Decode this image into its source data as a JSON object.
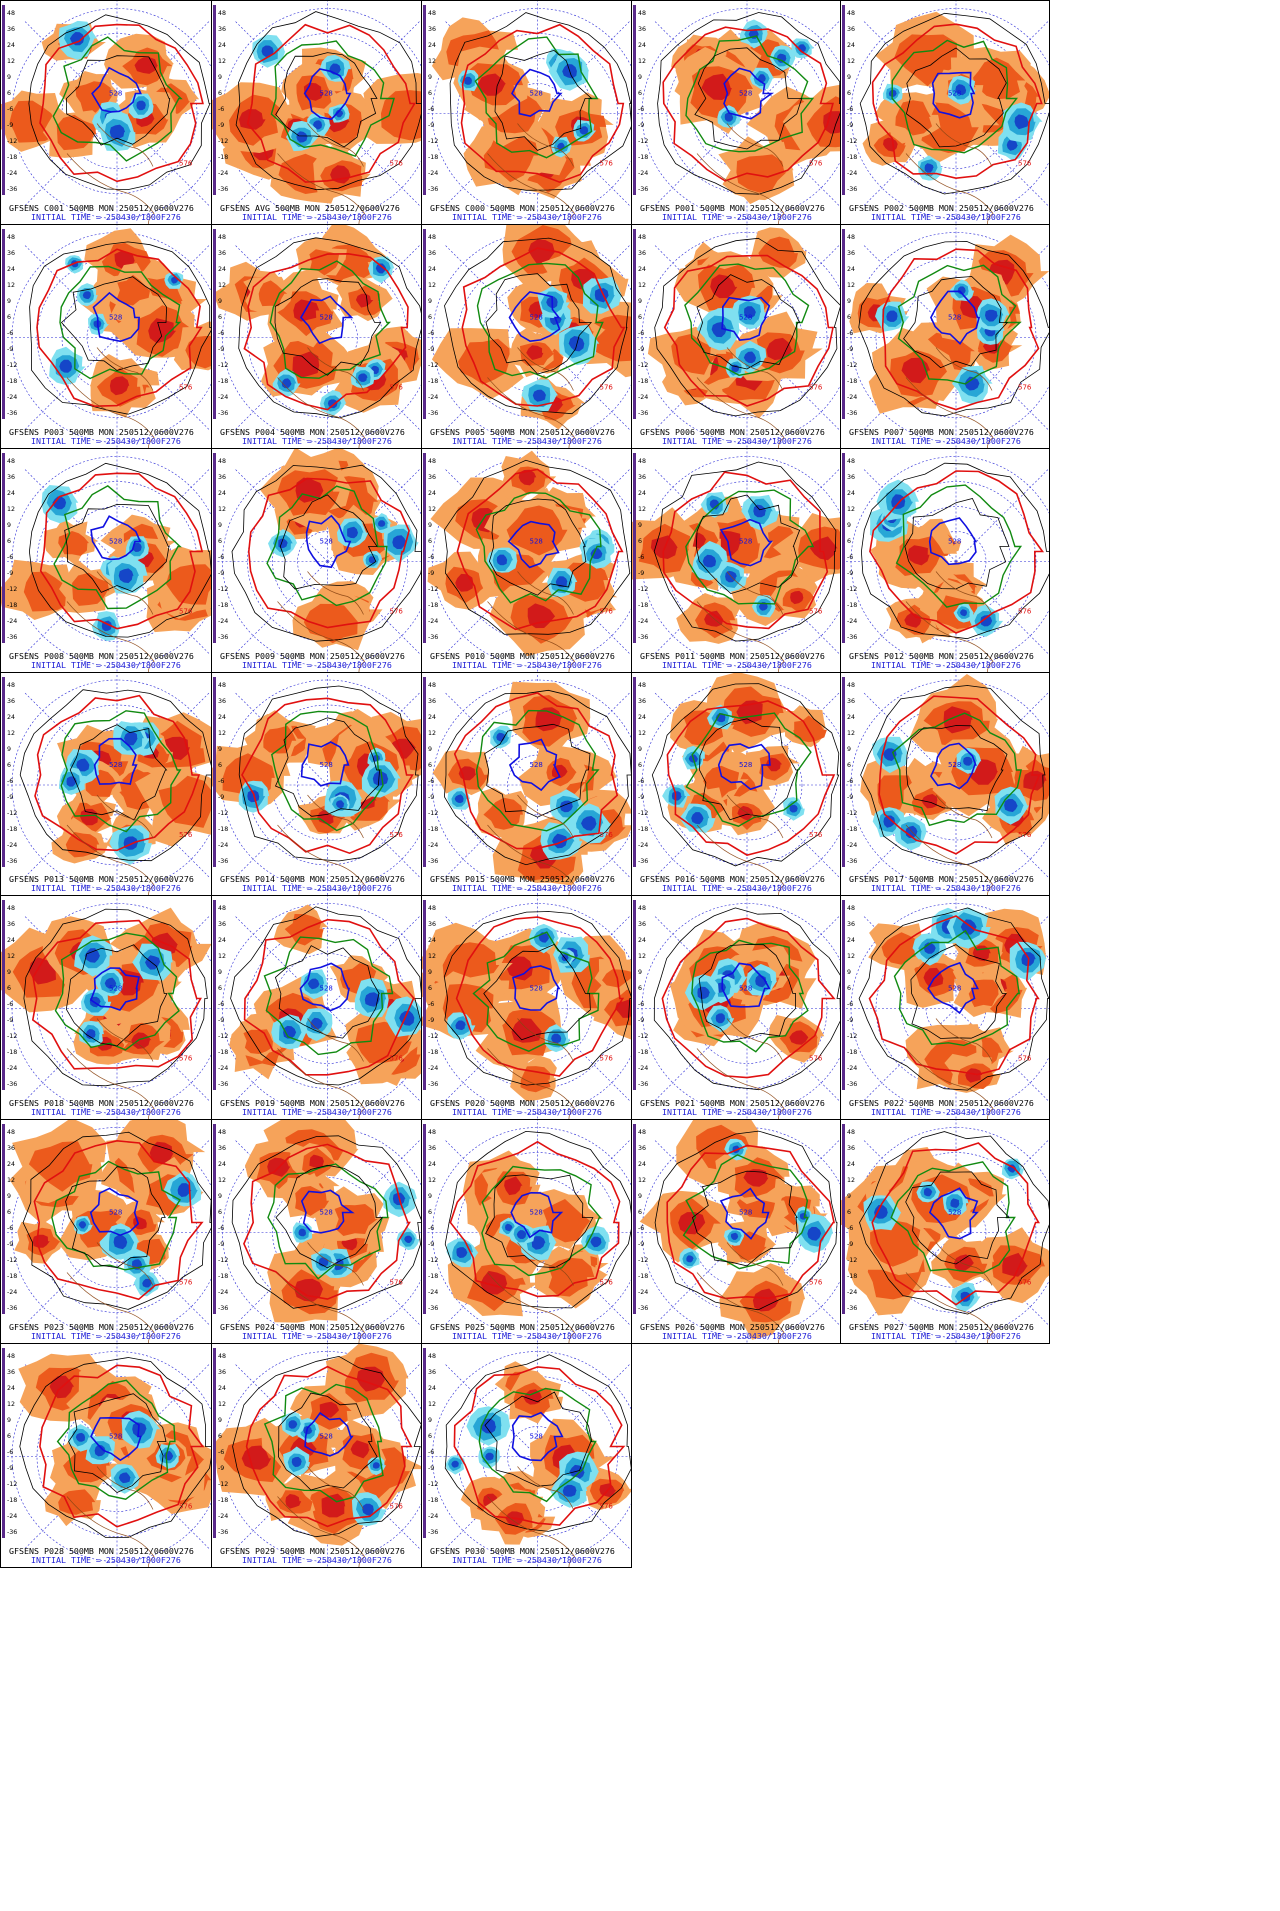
{
  "panels": [
    {
      "label": "GFSENS C001 500MB MON 250512/0600V276",
      "init": "INITIAL TIME = 250430/1800F276"
    },
    {
      "label": "GFSENS AVG 500MB MON 250512/0600V276",
      "init": "INITIAL TIME = 250430/1800F276"
    },
    {
      "label": "GFSENS C000 500MB MON 250512/0600V276",
      "init": "INITIAL TIME = 250430/1800F276"
    },
    {
      "label": "GFSENS P001 500MB MON 250512/0600V276",
      "init": "INITIAL TIME = 250430/1800F276"
    },
    {
      "label": "GFSENS P002 500MB MON 250512/0600V276",
      "init": "INITIAL TIME = 250430/1800F276"
    },
    {
      "label": "GFSENS P003 500MB MON 250512/0600V276",
      "init": "INITIAL TIME = 250430/1800F276"
    },
    {
      "label": "GFSENS P004 500MB MON 250512/0600V276",
      "init": "INITIAL TIME = 250430/1800F276"
    },
    {
      "label": "GFSENS P005 500MB MON 250512/0600V276",
      "init": "INITIAL TIME = 250430/1800F276"
    },
    {
      "label": "GFSENS P006 500MB MON 250512/0600V276",
      "init": "INITIAL TIME = 250430/1800F276"
    },
    {
      "label": "GFSENS P007 500MB MON 250512/0600V276",
      "init": "INITIAL TIME = 250430/1800F276"
    },
    {
      "label": "GFSENS P008 500MB MON 250512/0600V276",
      "init": "INITIAL TIME = 250430/1800F276"
    },
    {
      "label": "GFSENS P009 500MB MON 250512/0600V276",
      "init": "INITIAL TIME = 250430/1800F276"
    },
    {
      "label": "GFSENS P010 500MB MON 250512/0600V276",
      "init": "INITIAL TIME = 250430/1800F276"
    },
    {
      "label": "GFSENS P011 500MB MON 250512/0600V276",
      "init": "INITIAL TIME = 250430/1800F276"
    },
    {
      "label": "GFSENS P012 500MB MON 250512/0600V276",
      "init": "INITIAL TIME = 250430/1800F276"
    },
    {
      "label": "GFSENS P013 500MB MON 250512/0600V276",
      "init": "INITIAL TIME = 250430/1800F276"
    },
    {
      "label": "GFSENS P014 500MB MON 250512/0600V276",
      "init": "INITIAL TIME = 250430/1800F276"
    },
    {
      "label": "GFSENS P015 500MB MON 250512/0600V276",
      "init": "INITIAL TIME = 250430/1800F276"
    },
    {
      "label": "GFSENS P016 500MB MON 250512/0600V276",
      "init": "INITIAL TIME = 250430/1800F276"
    },
    {
      "label": "GFSENS P017 500MB MON 250512/0600V276",
      "init": "INITIAL TIME = 250430/1800F276"
    },
    {
      "label": "GFSENS P018 500MB MON 250512/0600V276",
      "init": "INITIAL TIME = 250430/1800F276"
    },
    {
      "label": "GFSENS P019 500MB MON 250512/0600V276",
      "init": "INITIAL TIME = 250430/1800F276"
    },
    {
      "label": "GFSENS P020 500MB MON 250512/0600V276",
      "init": "INITIAL TIME = 250430/1800F276"
    },
    {
      "label": "GFSENS P021 500MB MON 250512/0600V276",
      "init": "INITIAL TIME = 250430/1800F276"
    },
    {
      "label": "GFSENS P022 500MB MON 250512/0600V276",
      "init": "INITIAL TIME = 250430/1800F276"
    },
    {
      "label": "GFSENS P023 500MB MON 250512/0600V276",
      "init": "INITIAL TIME = 250430/1800F276"
    },
    {
      "label": "GFSENS P024 500MB MON 250512/0600V276",
      "init": "INITIAL TIME = 250430/1800F276"
    },
    {
      "label": "GFSENS P025 500MB MON 250512/0600V276",
      "init": "INITIAL TIME = 250430/1800F276"
    },
    {
      "label": "GFSENS P026 500MB MON 250512/0600V276",
      "init": "INITIAL TIME = 250430/1800F276"
    },
    {
      "label": "GFSENS P027 500MB MON 250512/0600V276",
      "init": "INITIAL TIME = 250430/1800F276"
    },
    {
      "label": "GFSENS P028 500MB MON 250512/0600V276",
      "init": "INITIAL TIME = 250430/1800F276"
    },
    {
      "label": "GFSENS P029 500MB MON 250512/0600V276",
      "init": "INITIAL TIME = 250430/1800F276"
    },
    {
      "label": "GFSENS P030 500MB MON 250512/0600V276",
      "init": "INITIAL TIME = 250430/1800F276"
    }
  ],
  "colorbar": {
    "ticks": [
      "48",
      "36",
      "24",
      "12",
      "9",
      "6",
      "-6",
      "-9",
      "-12",
      "-18",
      "-24",
      "-36"
    ]
  },
  "contour_labels": [
    "576",
    "528"
  ],
  "colors": {
    "positive_light": "#f6a35a",
    "positive_mid": "#ec5a1c",
    "positive_strong": "#d21a1a",
    "negative_light": "#7fe0f0",
    "negative_mid": "#27a6d6",
    "negative_strong": "#1546c8",
    "contour_576": "#e01010",
    "contour_540": "#118a11",
    "contour_528": "#1010e0",
    "contour_other": "#000000",
    "coastline": "#8b4513",
    "latlon_grid": "#2a2ad6",
    "colorbar_bar": "#5a2a8a"
  }
}
